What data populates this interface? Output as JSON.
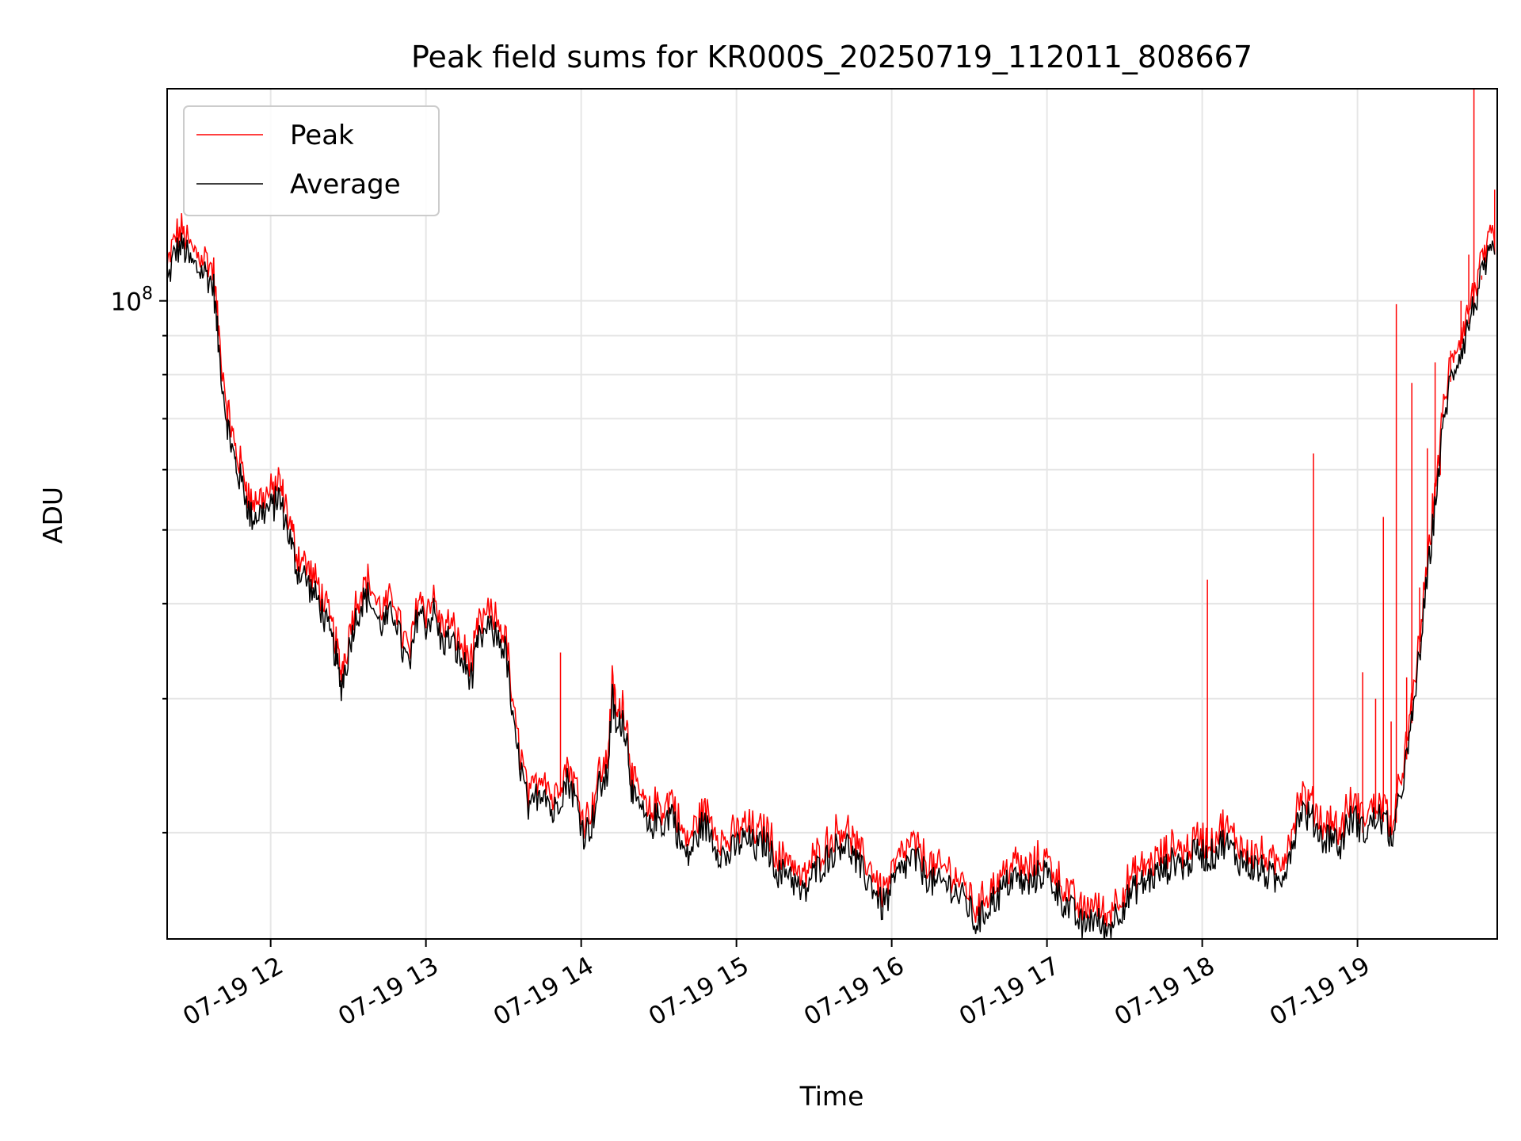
{
  "chart_data": {
    "type": "line",
    "title": "Peak field sums for KR000S_20250719_112011_808667",
    "xlabel": "Time",
    "ylabel": "ADU",
    "y_scale": "log",
    "ylim": [
      14500000,
      190000000
    ],
    "xlim": [
      "2025-07-19 11:20",
      "2025-07-19 19:54"
    ],
    "x_tick_labels": [
      "07-19 12",
      "07-19 13",
      "07-19 14",
      "07-19 15",
      "07-19 16",
      "07-19 17",
      "07-19 18",
      "07-19 19"
    ],
    "x_ticks": [
      "2025-07-19 12:00",
      "2025-07-19 13:00",
      "2025-07-19 14:00",
      "2025-07-19 15:00",
      "2025-07-19 16:00",
      "2025-07-19 17:00",
      "2025-07-19 18:00",
      "2025-07-19 19:00"
    ],
    "y_tick_labels": [
      {
        "value": 100000000,
        "base": "10",
        "exp": "8"
      }
    ],
    "grid": true,
    "legend_position": "top-left",
    "colors": {
      "Peak": "#ff0000",
      "Average": "#000000"
    },
    "series": [
      {
        "name": "Average",
        "points": [
          [
            "11:20",
            105000000.0
          ],
          [
            "11:23",
            116000000.0
          ],
          [
            "11:26",
            118000000.0
          ],
          [
            "11:29",
            112000000.0
          ],
          [
            "11:32",
            110000000.0
          ],
          [
            "11:35",
            109000000.0
          ],
          [
            "11:38",
            104000000.0
          ],
          [
            "11:40",
            86000000.0
          ],
          [
            "11:43",
            70000000.0
          ],
          [
            "11:45",
            64000000.0
          ],
          [
            "11:47",
            60000000.0
          ],
          [
            "11:50",
            56000000.0
          ],
          [
            "11:52",
            52000000.0
          ],
          [
            "11:55",
            52500000.0
          ],
          [
            "11:58",
            53000000.0
          ],
          [
            "12:01",
            53500000.0
          ],
          [
            "12:03",
            55500000.0
          ],
          [
            "12:05",
            52500000.0
          ],
          [
            "12:08",
            48000000.0
          ],
          [
            "12:10",
            44500000.0
          ],
          [
            "12:13",
            43500000.0
          ],
          [
            "12:16",
            41500000.0
          ],
          [
            "12:19",
            40000000.0
          ],
          [
            "12:22",
            37000000.0
          ],
          [
            "12:25",
            34500000.0
          ],
          [
            "12:27",
            31000000.0
          ],
          [
            "12:29",
            33000000.0
          ],
          [
            "12:32",
            37500000.0
          ],
          [
            "12:35",
            40000000.0
          ],
          [
            "12:38",
            41000000.0
          ],
          [
            "12:42",
            37500000.0
          ],
          [
            "12:45",
            38000000.0
          ],
          [
            "12:48",
            39000000.0
          ],
          [
            "12:51",
            34500000.0
          ],
          [
            "12:54",
            33000000.0
          ],
          [
            "12:57",
            39500000.0
          ],
          [
            "13:00",
            37500000.0
          ],
          [
            "13:03",
            39000000.0
          ],
          [
            "13:06",
            35500000.0
          ],
          [
            "13:09",
            36000000.0
          ],
          [
            "13:12",
            34500000.0
          ],
          [
            "13:15",
            33000000.0
          ],
          [
            "13:18",
            32000000.0
          ],
          [
            "13:20",
            35500000.0
          ],
          [
            "13:24",
            37000000.0
          ],
          [
            "13:28",
            36000000.0
          ],
          [
            "13:31",
            34500000.0
          ],
          [
            "13:34",
            27000000.0
          ],
          [
            "13:37",
            24000000.0
          ],
          [
            "13:40",
            21000000.0
          ],
          [
            "13:43",
            22500000.0
          ],
          [
            "13:46",
            23000000.0
          ],
          [
            "13:49",
            21000000.0
          ],
          [
            "13:52",
            22500000.0
          ],
          [
            "13:55",
            23500000.0
          ],
          [
            "13:58",
            22000000.0
          ],
          [
            "14:01",
            20000000.0
          ],
          [
            "14:04",
            20500000.0
          ],
          [
            "14:07",
            23000000.0
          ],
          [
            "14:10",
            23500000.0
          ],
          [
            "14:12",
            30000000.0
          ],
          [
            "14:14",
            27000000.0
          ],
          [
            "14:16",
            28500000.0
          ],
          [
            "14:18",
            26000000.0
          ],
          [
            "14:20",
            22000000.0
          ],
          [
            "14:23",
            21500000.0
          ],
          [
            "14:26",
            20000000.0
          ],
          [
            "14:29",
            21000000.0
          ],
          [
            "14:32",
            20500000.0
          ],
          [
            "14:35",
            21500000.0
          ],
          [
            "14:38",
            19500000.0
          ],
          [
            "14:41",
            18500000.0
          ],
          [
            "14:44",
            19500000.0
          ],
          [
            "14:47",
            20500000.0
          ],
          [
            "14:50",
            20000000.0
          ],
          [
            "14:53",
            19000000.0
          ],
          [
            "14:56",
            18500000.0
          ],
          [
            "14:59",
            19000000.0
          ],
          [
            "15:02",
            19500000.0
          ],
          [
            "15:05",
            19500000.0
          ],
          [
            "15:08",
            19000000.0
          ],
          [
            "15:11",
            19500000.0
          ],
          [
            "15:14",
            18500000.0
          ],
          [
            "15:17",
            17500000.0
          ],
          [
            "15:20",
            18000000.0
          ],
          [
            "15:23",
            17000000.0
          ],
          [
            "15:26",
            16500000.0
          ],
          [
            "15:29",
            17500000.0
          ],
          [
            "15:32",
            18000000.0
          ],
          [
            "15:35",
            18500000.0
          ],
          [
            "15:38",
            19000000.0
          ],
          [
            "15:41",
            19500000.0
          ],
          [
            "15:44",
            19000000.0
          ],
          [
            "15:47",
            18000000.0
          ],
          [
            "15:50",
            17500000.0
          ],
          [
            "15:53",
            17000000.0
          ],
          [
            "15:56",
            16000000.0
          ],
          [
            "15:59",
            16500000.0
          ],
          [
            "16:02",
            17500000.0
          ],
          [
            "16:05",
            18000000.0
          ],
          [
            "16:08",
            18500000.0
          ],
          [
            "16:11",
            18000000.0
          ],
          [
            "16:14",
            17500000.0
          ],
          [
            "16:17",
            17000000.0
          ],
          [
            "16:20",
            17200000.0
          ],
          [
            "16:23",
            17000000.0
          ],
          [
            "16:26",
            16500000.0
          ],
          [
            "16:29",
            16200000.0
          ],
          [
            "16:32",
            15200000.0
          ],
          [
            "16:35",
            15500000.0
          ],
          [
            "16:38",
            16200000.0
          ],
          [
            "16:41",
            16500000.0
          ],
          [
            "16:44",
            17000000.0
          ],
          [
            "16:47",
            17500000.0
          ],
          [
            "16:50",
            17200000.0
          ],
          [
            "16:53",
            17000000.0
          ],
          [
            "16:56",
            17500000.0
          ],
          [
            "16:59",
            17800000.0
          ],
          [
            "17:02",
            17200000.0
          ],
          [
            "17:05",
            16500000.0
          ],
          [
            "17:08",
            16000000.0
          ],
          [
            "17:11",
            15500000.0
          ],
          [
            "17:14",
            15000000.0
          ],
          [
            "17:17",
            15500000.0
          ],
          [
            "17:20",
            15200000.0
          ],
          [
            "17:23",
            14800000.0
          ],
          [
            "17:26",
            15500000.0
          ],
          [
            "17:29",
            16000000.0
          ],
          [
            "17:32",
            16500000.0
          ],
          [
            "17:35",
            17000000.0
          ],
          [
            "17:38",
            17200000.0
          ],
          [
            "17:41",
            17500000.0
          ],
          [
            "17:44",
            17800000.0
          ],
          [
            "17:47",
            18000000.0
          ],
          [
            "17:50",
            18500000.0
          ],
          [
            "17:53",
            18000000.0
          ],
          [
            "17:56",
            18500000.0
          ],
          [
            "17:59",
            19000000.0
          ],
          [
            "18:02",
            18500000.0
          ],
          [
            "18:05",
            18800000.0
          ],
          [
            "18:08",
            19500000.0
          ],
          [
            "18:11",
            19000000.0
          ],
          [
            "18:14",
            18500000.0
          ],
          [
            "18:17",
            18200000.0
          ],
          [
            "18:20",
            18000000.0
          ],
          [
            "18:23",
            17800000.0
          ],
          [
            "18:26",
            17500000.0
          ],
          [
            "18:29",
            17200000.0
          ],
          [
            "18:32",
            18000000.0
          ],
          [
            "18:35",
            19500000.0
          ],
          [
            "18:38",
            21500000.0
          ],
          [
            "18:41",
            21000000.0
          ],
          [
            "18:44",
            20500000.0
          ],
          [
            "18:47",
            19500000.0
          ],
          [
            "18:50",
            20000000.0
          ],
          [
            "18:53",
            19000000.0
          ],
          [
            "18:56",
            20500000.0
          ],
          [
            "18:59",
            21000000.0
          ],
          [
            "19:02",
            20000000.0
          ],
          [
            "19:05",
            20500000.0
          ],
          [
            "19:08",
            21000000.0
          ],
          [
            "19:11",
            20500000.0
          ],
          [
            "19:14",
            19500000.0
          ],
          [
            "19:17",
            23000000.0
          ],
          [
            "19:20",
            26000000.0
          ],
          [
            "19:23",
            32000000.0
          ],
          [
            "19:26",
            40000000.0
          ],
          [
            "19:29",
            50000000.0
          ],
          [
            "19:32",
            63000000.0
          ],
          [
            "19:35",
            76000000.0
          ],
          [
            "19:38",
            83000000.0
          ],
          [
            "19:41",
            88000000.0
          ],
          [
            "19:44",
            96000000.0
          ],
          [
            "19:47",
            104000000.0
          ],
          [
            "19:50",
            112000000.0
          ],
          [
            "19:53",
            115000000.0
          ]
        ]
      },
      {
        "name": "Peak",
        "ratio_to_average": 1.03,
        "spikes": [
          [
            "13:52",
            34500000.0
          ],
          [
            "18:02",
            43000000.0
          ],
          [
            "18:43",
            63000000.0
          ],
          [
            "19:02",
            32500000.0
          ],
          [
            "19:07",
            30000000.0
          ],
          [
            "19:10",
            52000000.0
          ],
          [
            "19:13",
            28000000.0
          ],
          [
            "19:15",
            99000000.0
          ],
          [
            "19:19",
            32000000.0
          ],
          [
            "19:21",
            78000000.0
          ],
          [
            "19:24",
            42000000.0
          ],
          [
            "19:27",
            64000000.0
          ],
          [
            "19:30",
            83000000.0
          ],
          [
            "19:32",
            59000000.0
          ],
          [
            "19:36",
            86000000.0
          ],
          [
            "19:40",
            100000000.0
          ],
          [
            "19:43",
            115000000.0
          ],
          [
            "19:45",
            190000000.0
          ],
          [
            "19:48",
            108000000.0
          ],
          [
            "19:53",
            140000000.0
          ]
        ]
      }
    ]
  }
}
